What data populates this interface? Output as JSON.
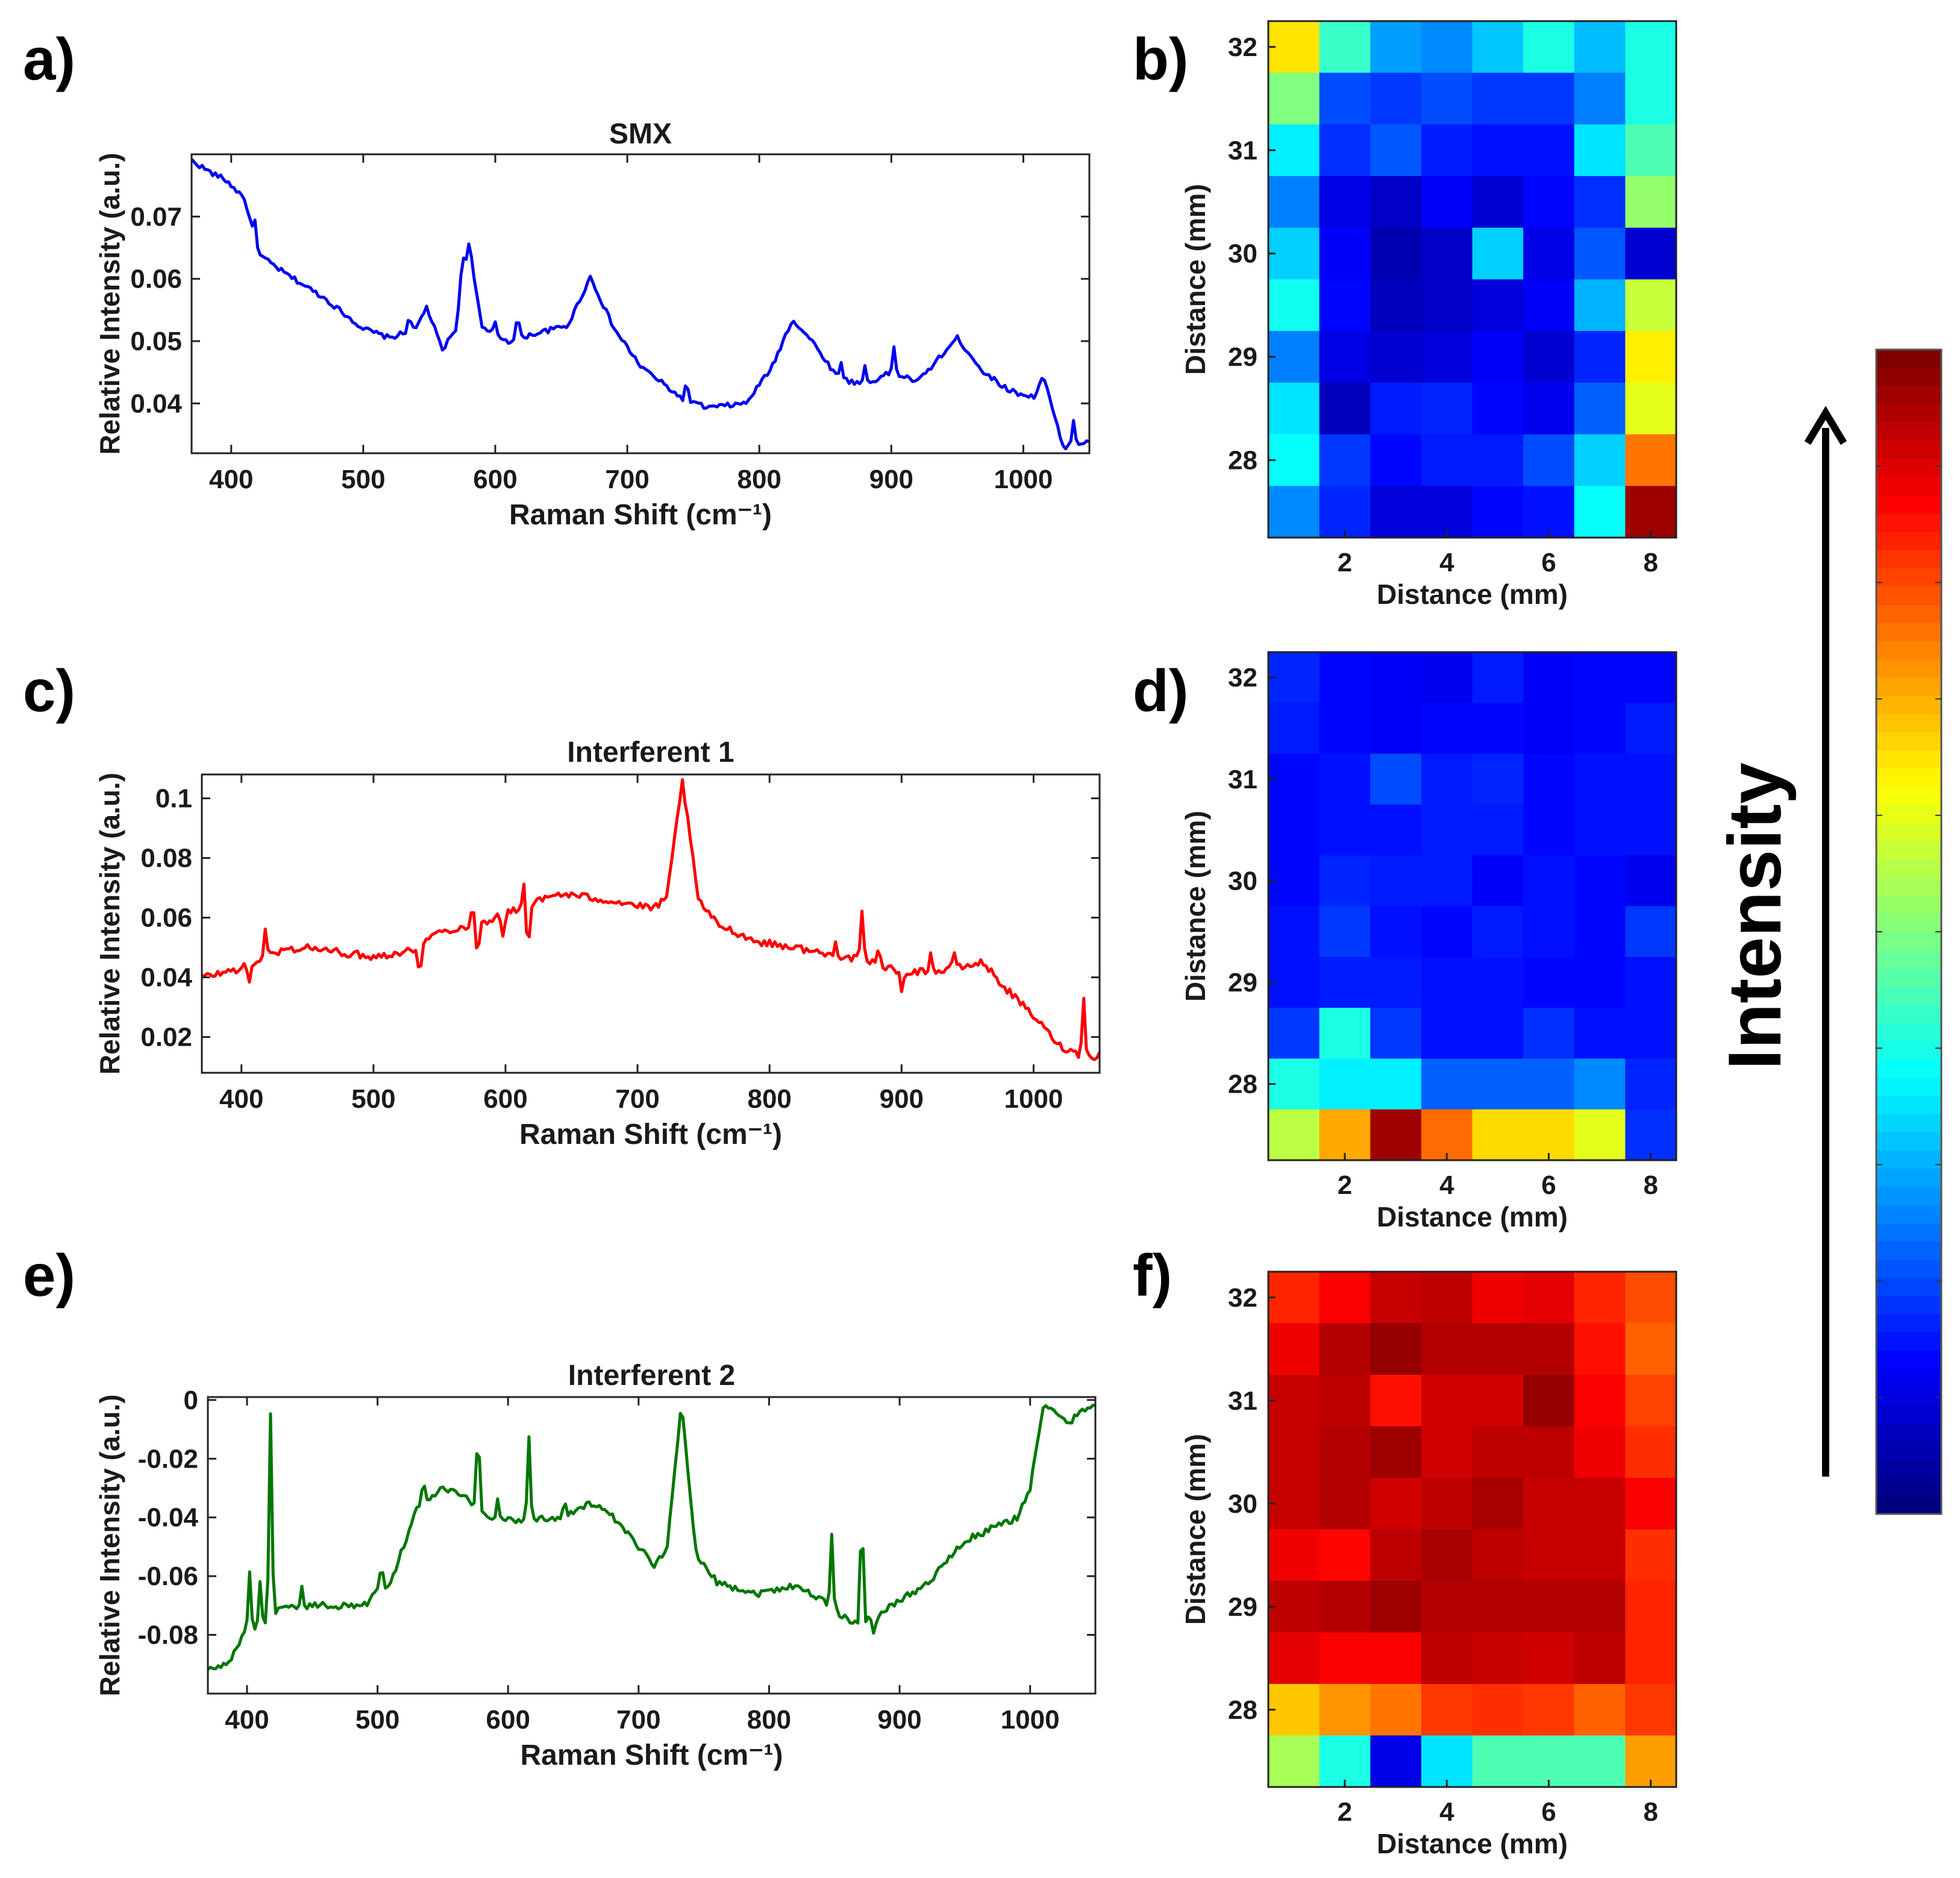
{
  "panel_labels": [
    "a)",
    "b)",
    "c)",
    "d)",
    "e)",
    "f)"
  ],
  "colorbar": {
    "label": "Intensity",
    "colormap": "jet"
  },
  "chart_data": [
    {
      "id": "a",
      "type": "line",
      "title": "SMX",
      "xlabel": "Raman Shift (cm⁻¹)",
      "ylabel": "Relative Intensity (a.u.)",
      "color": "#0000ee",
      "xlim": [
        370,
        1050
      ],
      "ylim": [
        0.032,
        0.08
      ],
      "xticks": [
        400,
        500,
        600,
        700,
        800,
        900,
        1000
      ],
      "yticks": [
        0.04,
        0.05,
        0.06,
        0.07
      ],
      "ytick_labels": [
        "0.04",
        "0.05",
        "0.06",
        "0.07"
      ],
      "baseline": [
        [
          370,
          0.079
        ],
        [
          385,
          0.077
        ],
        [
          395,
          0.076
        ],
        [
          410,
          0.073
        ],
        [
          420,
          0.064
        ],
        [
          440,
          0.061
        ],
        [
          470,
          0.057
        ],
        [
          500,
          0.052
        ],
        [
          520,
          0.0505
        ],
        [
          540,
          0.052
        ],
        [
          548,
          0.0555
        ],
        [
          560,
          0.0485
        ],
        [
          570,
          0.052
        ],
        [
          580,
          0.066
        ],
        [
          590,
          0.052
        ],
        [
          610,
          0.05
        ],
        [
          630,
          0.0512
        ],
        [
          655,
          0.0525
        ],
        [
          672,
          0.0603
        ],
        [
          690,
          0.052
        ],
        [
          710,
          0.046
        ],
        [
          740,
          0.041
        ],
        [
          760,
          0.0393
        ],
        [
          790,
          0.04
        ],
        [
          810,
          0.046
        ],
        [
          825,
          0.0535
        ],
        [
          840,
          0.05
        ],
        [
          860,
          0.044
        ],
        [
          880,
          0.043
        ],
        [
          900,
          0.045
        ],
        [
          920,
          0.0435
        ],
        [
          950,
          0.0505
        ],
        [
          970,
          0.045
        ],
        [
          990,
          0.042
        ],
        [
          1008,
          0.041
        ],
        [
          1015,
          0.0445
        ],
        [
          1030,
          0.033
        ],
        [
          1040,
          0.0335
        ],
        [
          1050,
          0.034
        ]
      ],
      "spikes": [
        [
          575,
          0.005
        ],
        [
          418,
          0.004
        ],
        [
          535,
          0.003
        ],
        [
          617,
          0.004
        ],
        [
          600,
          0.002
        ],
        [
          745,
          0.003
        ],
        [
          862,
          0.003
        ],
        [
          880,
          0.003
        ],
        [
          902,
          0.004
        ],
        [
          1038,
          0.004
        ]
      ],
      "noise": 0.0004
    },
    {
      "id": "c",
      "type": "line",
      "title": "Interferent 1",
      "xlabel": "Raman Shift (cm⁻¹)",
      "ylabel": "Relative Intensity (a.u.)",
      "color": "#ff0000",
      "xlim": [
        370,
        1050
      ],
      "ylim": [
        0.008,
        0.108
      ],
      "xticks": [
        400,
        500,
        600,
        700,
        800,
        900,
        1000
      ],
      "yticks": [
        0.02,
        0.04,
        0.06,
        0.08,
        0.1
      ],
      "ytick_labels": [
        "0.02",
        "0.04",
        "0.06",
        "0.08",
        "0.1"
      ],
      "baseline": [
        [
          370,
          0.04
        ],
        [
          400,
          0.043
        ],
        [
          430,
          0.049
        ],
        [
          450,
          0.05
        ],
        [
          480,
          0.048
        ],
        [
          500,
          0.047
        ],
        [
          530,
          0.049
        ],
        [
          548,
          0.055
        ],
        [
          580,
          0.058
        ],
        [
          610,
          0.063
        ],
        [
          640,
          0.068
        ],
        [
          660,
          0.067
        ],
        [
          690,
          0.065
        ],
        [
          710,
          0.063
        ],
        [
          722,
          0.066
        ],
        [
          734,
          0.106
        ],
        [
          746,
          0.066
        ],
        [
          760,
          0.058
        ],
        [
          790,
          0.052
        ],
        [
          820,
          0.05
        ],
        [
          850,
          0.047
        ],
        [
          870,
          0.046
        ],
        [
          900,
          0.042
        ],
        [
          930,
          0.042
        ],
        [
          962,
          0.045
        ],
        [
          975,
          0.038
        ],
        [
          1000,
          0.027
        ],
        [
          1020,
          0.017
        ],
        [
          1040,
          0.013
        ],
        [
          1050,
          0.014
        ]
      ],
      "spikes": [
        [
          418,
          0.009
        ],
        [
          406,
          -0.006
        ],
        [
          535,
          -0.01
        ],
        [
          575,
          0.006
        ],
        [
          579,
          -0.012
        ],
        [
          598,
          -0.008
        ],
        [
          614,
          0.008
        ],
        [
          617,
          -0.018
        ],
        [
          870,
          0.015
        ],
        [
          850,
          0.006
        ],
        [
          883,
          0.006
        ],
        [
          900,
          -0.008
        ],
        [
          922,
          0.006
        ],
        [
          940,
          0.006
        ],
        [
          1038,
          0.02
        ]
      ],
      "noise": 0.0012
    },
    {
      "id": "e",
      "type": "line",
      "title": "Interferent 2",
      "xlabel": "Raman Shift (cm⁻¹)",
      "ylabel": "Relative Intensity (a.u.)",
      "color": "#007700",
      "xlim": [
        370,
        1050
      ],
      "ylim": [
        -0.1,
        0.001
      ],
      "xticks": [
        400,
        500,
        600,
        700,
        800,
        900,
        1000
      ],
      "yticks": [
        -0.08,
        -0.06,
        -0.04,
        -0.02,
        0
      ],
      "ytick_labels": [
        "-0.08",
        "-0.06",
        "-0.04",
        "-0.02",
        "0"
      ],
      "baseline": [
        [
          370,
          -0.092
        ],
        [
          385,
          -0.09
        ],
        [
          395,
          -0.082
        ],
        [
          400,
          -0.078
        ],
        [
          410,
          -0.08
        ],
        [
          420,
          -0.072
        ],
        [
          450,
          -0.07
        ],
        [
          490,
          -0.07
        ],
        [
          500,
          -0.065
        ],
        [
          510,
          -0.062
        ],
        [
          530,
          -0.037
        ],
        [
          550,
          -0.03
        ],
        [
          570,
          -0.034
        ],
        [
          585,
          -0.04
        ],
        [
          610,
          -0.041
        ],
        [
          640,
          -0.04
        ],
        [
          665,
          -0.035
        ],
        [
          680,
          -0.04
        ],
        [
          700,
          -0.05
        ],
        [
          712,
          -0.056
        ],
        [
          722,
          -0.05
        ],
        [
          733,
          -0.001
        ],
        [
          744,
          -0.052
        ],
        [
          760,
          -0.062
        ],
        [
          790,
          -0.066
        ],
        [
          820,
          -0.063
        ],
        [
          840,
          -0.068
        ],
        [
          860,
          -0.075
        ],
        [
          880,
          -0.075
        ],
        [
          900,
          -0.068
        ],
        [
          920,
          -0.063
        ],
        [
          950,
          -0.048
        ],
        [
          990,
          -0.04
        ],
        [
          1000,
          -0.03
        ],
        [
          1010,
          -0.002
        ],
        [
          1030,
          -0.008
        ],
        [
          1040,
          -0.003
        ],
        [
          1050,
          -0.001
        ]
      ],
      "spikes": [
        [
          418,
          0.068
        ],
        [
          402,
          0.02
        ],
        [
          410,
          0.018
        ],
        [
          442,
          0.006
        ],
        [
          503,
          0.01
        ],
        [
          535,
          0.008
        ],
        [
          577,
          0.03
        ],
        [
          592,
          0.006
        ],
        [
          616,
          0.028
        ],
        [
          643,
          0.006
        ],
        [
          848,
          0.025
        ],
        [
          871,
          0.04
        ],
        [
          880,
          -0.004
        ]
      ],
      "noise": 0.0012
    },
    {
      "id": "b",
      "type": "heatmap",
      "xlabel": "Distance (mm)",
      "ylabel": "Distance (mm)",
      "xticks": [
        2,
        4,
        6,
        8
      ],
      "yticks": [
        28,
        29,
        30,
        31,
        32
      ],
      "x_range": [
        0.5,
        8.5
      ],
      "y_range": [
        27.25,
        32.25
      ],
      "values_top_to_bottom": [
        [
          0.65,
          0.43,
          0.28,
          0.26,
          0.32,
          0.4,
          0.31,
          0.4
        ],
        [
          0.5,
          0.2,
          0.18,
          0.2,
          0.18,
          0.18,
          0.25,
          0.4
        ],
        [
          0.36,
          0.17,
          0.21,
          0.15,
          0.14,
          0.14,
          0.35,
          0.45
        ],
        [
          0.25,
          0.1,
          0.07,
          0.12,
          0.08,
          0.13,
          0.17,
          0.52
        ],
        [
          0.33,
          0.12,
          0.05,
          0.07,
          0.33,
          0.1,
          0.21,
          0.08
        ],
        [
          0.39,
          0.13,
          0.06,
          0.07,
          0.09,
          0.12,
          0.3,
          0.57
        ],
        [
          0.25,
          0.1,
          0.08,
          0.09,
          0.12,
          0.08,
          0.16,
          0.64
        ],
        [
          0.35,
          0.06,
          0.15,
          0.16,
          0.13,
          0.11,
          0.22,
          0.6
        ],
        [
          0.38,
          0.18,
          0.13,
          0.15,
          0.15,
          0.2,
          0.33,
          0.76
        ],
        [
          0.26,
          0.16,
          0.09,
          0.09,
          0.13,
          0.14,
          0.38,
          0.97
        ]
      ]
    },
    {
      "id": "d",
      "type": "heatmap",
      "xlabel": "Distance (mm)",
      "ylabel": "Distance (mm)",
      "xticks": [
        2,
        4,
        6,
        8
      ],
      "yticks": [
        28,
        29,
        30,
        31,
        32
      ],
      "x_range": [
        0.5,
        8.5
      ],
      "y_range": [
        27.25,
        32.25
      ],
      "values_top_to_bottom": [
        [
          0.16,
          0.13,
          0.12,
          0.11,
          0.15,
          0.12,
          0.13,
          0.13
        ],
        [
          0.15,
          0.13,
          0.12,
          0.13,
          0.13,
          0.12,
          0.13,
          0.15
        ],
        [
          0.13,
          0.14,
          0.2,
          0.15,
          0.16,
          0.13,
          0.14,
          0.14
        ],
        [
          0.13,
          0.14,
          0.14,
          0.15,
          0.15,
          0.13,
          0.14,
          0.14
        ],
        [
          0.13,
          0.16,
          0.15,
          0.15,
          0.12,
          0.14,
          0.13,
          0.11
        ],
        [
          0.14,
          0.18,
          0.14,
          0.13,
          0.15,
          0.14,
          0.13,
          0.18
        ],
        [
          0.14,
          0.15,
          0.15,
          0.14,
          0.14,
          0.13,
          0.13,
          0.14
        ],
        [
          0.18,
          0.4,
          0.18,
          0.14,
          0.14,
          0.17,
          0.14,
          0.14
        ],
        [
          0.4,
          0.36,
          0.36,
          0.22,
          0.22,
          0.22,
          0.26,
          0.16
        ],
        [
          0.56,
          0.71,
          0.97,
          0.77,
          0.66,
          0.66,
          0.6,
          0.17
        ]
      ]
    },
    {
      "id": "f",
      "type": "heatmap",
      "xlabel": "Distance (mm)",
      "ylabel": "Distance (mm)",
      "xticks": [
        2,
        4,
        6,
        8
      ],
      "yticks": [
        28,
        29,
        30,
        31,
        32
      ],
      "x_range": [
        0.5,
        8.5
      ],
      "y_range": [
        27.25,
        32.25
      ],
      "values_top_to_bottom": [
        [
          0.84,
          0.88,
          0.93,
          0.94,
          0.89,
          0.9,
          0.84,
          0.8
        ],
        [
          0.89,
          0.95,
          0.98,
          0.95,
          0.95,
          0.95,
          0.86,
          0.78
        ],
        [
          0.93,
          0.94,
          0.86,
          0.92,
          0.92,
          0.98,
          0.88,
          0.81
        ],
        [
          0.93,
          0.95,
          0.97,
          0.92,
          0.94,
          0.94,
          0.89,
          0.83
        ],
        [
          0.93,
          0.95,
          0.92,
          0.94,
          0.96,
          0.93,
          0.93,
          0.88
        ],
        [
          0.89,
          0.87,
          0.94,
          0.96,
          0.94,
          0.93,
          0.93,
          0.83
        ],
        [
          0.94,
          0.95,
          0.97,
          0.95,
          0.95,
          0.95,
          0.95,
          0.84
        ],
        [
          0.9,
          0.88,
          0.88,
          0.94,
          0.93,
          0.92,
          0.94,
          0.84
        ],
        [
          0.68,
          0.73,
          0.76,
          0.82,
          0.83,
          0.82,
          0.78,
          0.82
        ],
        [
          0.54,
          0.4,
          0.1,
          0.35,
          0.45,
          0.45,
          0.45,
          0.72
        ]
      ]
    }
  ]
}
